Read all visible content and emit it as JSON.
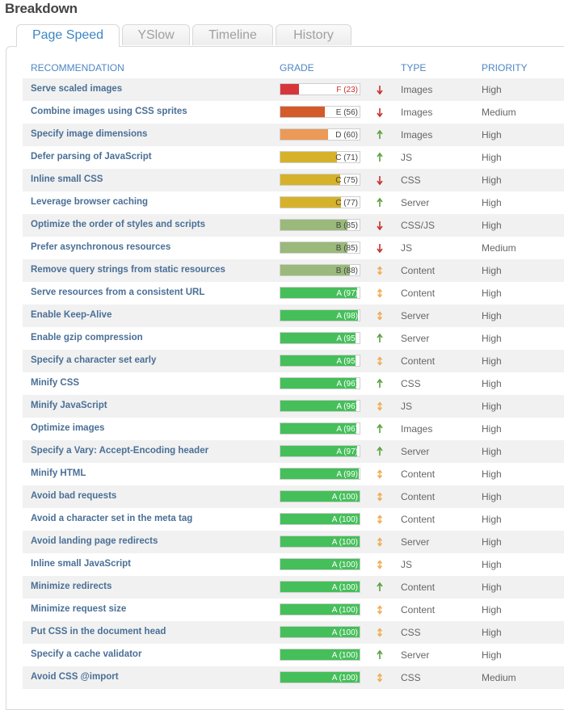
{
  "title": "Breakdown",
  "tabs": [
    "Page Speed",
    "YSlow",
    "Timeline",
    "History"
  ],
  "columns": {
    "recommendation": "RECOMMENDATION",
    "grade": "GRADE",
    "type": "TYPE",
    "priority": "PRIORITY"
  },
  "colors": {
    "F": "#d6363a",
    "E": "#d45a2a",
    "D": "#eb9a58",
    "C": "#d6b22a",
    "B": "#9ab97a",
    "A": "#45bf5a",
    "down": "#c8302c",
    "up": "#5aa23c",
    "neutral": "#f0a84a"
  },
  "rows": [
    {
      "name": "Serve scaled images",
      "grade": "F (23)",
      "letter": "F",
      "score": 23,
      "trend": "down",
      "type": "Images",
      "priority": "High"
    },
    {
      "name": "Combine images using CSS sprites",
      "grade": "E (56)",
      "letter": "E",
      "score": 56,
      "trend": "down",
      "type": "Images",
      "priority": "Medium"
    },
    {
      "name": "Specify image dimensions",
      "grade": "D (60)",
      "letter": "D",
      "score": 60,
      "trend": "up",
      "type": "Images",
      "priority": "High"
    },
    {
      "name": "Defer parsing of JavaScript",
      "grade": "C (71)",
      "letter": "C",
      "score": 71,
      "trend": "up",
      "type": "JS",
      "priority": "High"
    },
    {
      "name": "Inline small CSS",
      "grade": "C (75)",
      "letter": "C",
      "score": 75,
      "trend": "down",
      "type": "CSS",
      "priority": "High"
    },
    {
      "name": "Leverage browser caching",
      "grade": "C (77)",
      "letter": "C",
      "score": 77,
      "trend": "up",
      "type": "Server",
      "priority": "High"
    },
    {
      "name": "Optimize the order of styles and scripts",
      "grade": "B (85)",
      "letter": "B",
      "score": 85,
      "trend": "down",
      "type": "CSS/JS",
      "priority": "High"
    },
    {
      "name": "Prefer asynchronous resources",
      "grade": "B (85)",
      "letter": "B",
      "score": 85,
      "trend": "down",
      "type": "JS",
      "priority": "Medium"
    },
    {
      "name": "Remove query strings from static resources",
      "grade": "B (88)",
      "letter": "B",
      "score": 88,
      "trend": "neutral",
      "type": "Content",
      "priority": "High"
    },
    {
      "name": "Serve resources from a consistent URL",
      "grade": "A (97)",
      "letter": "A",
      "score": 97,
      "trend": "neutral",
      "type": "Content",
      "priority": "High"
    },
    {
      "name": "Enable Keep-Alive",
      "grade": "A (98)",
      "letter": "A",
      "score": 98,
      "trend": "neutral",
      "type": "Server",
      "priority": "High"
    },
    {
      "name": "Enable gzip compression",
      "grade": "A (95)",
      "letter": "A",
      "score": 95,
      "trend": "up",
      "type": "Server",
      "priority": "High"
    },
    {
      "name": "Specify a character set early",
      "grade": "A (95)",
      "letter": "A",
      "score": 95,
      "trend": "neutral",
      "type": "Content",
      "priority": "High"
    },
    {
      "name": "Minify CSS",
      "grade": "A (96)",
      "letter": "A",
      "score": 96,
      "trend": "up",
      "type": "CSS",
      "priority": "High"
    },
    {
      "name": "Minify JavaScript",
      "grade": "A (96)",
      "letter": "A",
      "score": 96,
      "trend": "neutral",
      "type": "JS",
      "priority": "High"
    },
    {
      "name": "Optimize images",
      "grade": "A (96)",
      "letter": "A",
      "score": 96,
      "trend": "up",
      "type": "Images",
      "priority": "High"
    },
    {
      "name": "Specify a Vary: Accept-Encoding header",
      "grade": "A (97)",
      "letter": "A",
      "score": 97,
      "trend": "up",
      "type": "Server",
      "priority": "High"
    },
    {
      "name": "Minify HTML",
      "grade": "A (99)",
      "letter": "A",
      "score": 99,
      "trend": "neutral",
      "type": "Content",
      "priority": "High"
    },
    {
      "name": "Avoid bad requests",
      "grade": "A (100)",
      "letter": "A",
      "score": 100,
      "trend": "neutral",
      "type": "Content",
      "priority": "High"
    },
    {
      "name": "Avoid a character set in the meta tag",
      "grade": "A (100)",
      "letter": "A",
      "score": 100,
      "trend": "neutral",
      "type": "Content",
      "priority": "High"
    },
    {
      "name": "Avoid landing page redirects",
      "grade": "A (100)",
      "letter": "A",
      "score": 100,
      "trend": "neutral",
      "type": "Server",
      "priority": "High"
    },
    {
      "name": "Inline small JavaScript",
      "grade": "A (100)",
      "letter": "A",
      "score": 100,
      "trend": "neutral",
      "type": "JS",
      "priority": "High"
    },
    {
      "name": "Minimize redirects",
      "grade": "A (100)",
      "letter": "A",
      "score": 100,
      "trend": "up",
      "type": "Content",
      "priority": "High"
    },
    {
      "name": "Minimize request size",
      "grade": "A (100)",
      "letter": "A",
      "score": 100,
      "trend": "neutral",
      "type": "Content",
      "priority": "High"
    },
    {
      "name": "Put CSS in the document head",
      "grade": "A (100)",
      "letter": "A",
      "score": 100,
      "trend": "neutral",
      "type": "CSS",
      "priority": "High"
    },
    {
      "name": "Specify a cache validator",
      "grade": "A (100)",
      "letter": "A",
      "score": 100,
      "trend": "up",
      "type": "Server",
      "priority": "High"
    },
    {
      "name": "Avoid CSS @import",
      "grade": "A (100)",
      "letter": "A",
      "score": 100,
      "trend": "neutral",
      "type": "CSS",
      "priority": "Medium"
    }
  ]
}
